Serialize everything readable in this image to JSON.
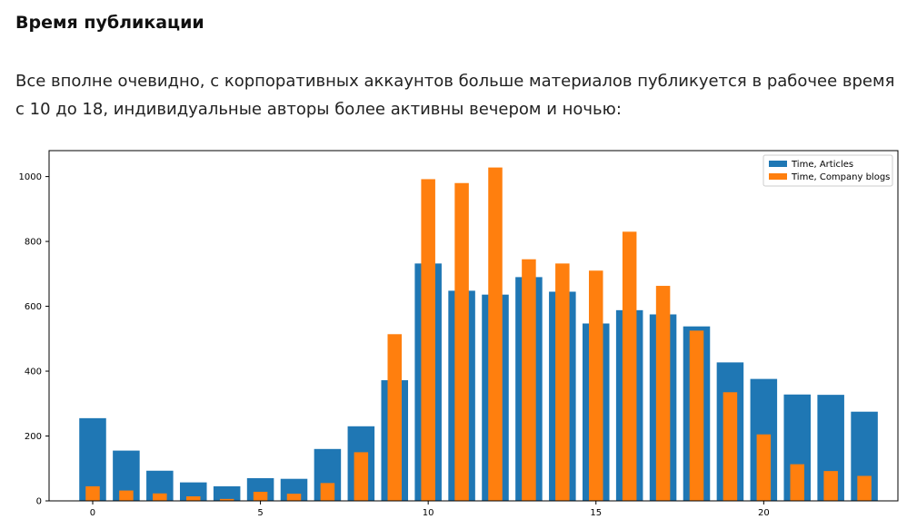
{
  "article": {
    "heading": "Время публикации",
    "paragraph": "Все вполне очевидно, с корпоративных аккаунтов больше материалов публикуется в рабочее время с 10 до 18, индивидуальные авторы более активны вечером и ночью:"
  },
  "chart_data": {
    "type": "bar",
    "x": [
      0,
      1,
      2,
      3,
      4,
      5,
      6,
      7,
      8,
      9,
      10,
      11,
      12,
      13,
      14,
      15,
      16,
      17,
      18,
      19,
      20,
      21,
      22,
      23
    ],
    "series": [
      {
        "name": "Time, Articles",
        "color": "#1f77b4",
        "values": [
          255,
          155,
          93,
          57,
          45,
          70,
          68,
          160,
          230,
          372,
          732,
          648,
          636,
          690,
          645,
          547,
          588,
          575,
          538,
          427,
          376,
          328,
          327,
          275
        ]
      },
      {
        "name": "Time, Company blogs",
        "color": "#ff7f0e",
        "values": [
          45,
          32,
          23,
          14,
          6,
          28,
          22,
          55,
          150,
          514,
          992,
          980,
          1028,
          745,
          732,
          710,
          830,
          663,
          525,
          335,
          205,
          113,
          92,
          77
        ]
      }
    ],
    "xticks": [
      "0",
      "5",
      "10",
      "15",
      "20"
    ],
    "yticks": [
      "0",
      "200",
      "400",
      "600",
      "800",
      "1000"
    ],
    "xlim": [
      -1.3,
      24
    ],
    "ylim": [
      0,
      1080
    ],
    "legend_position": "upper-right",
    "grid": false
  }
}
